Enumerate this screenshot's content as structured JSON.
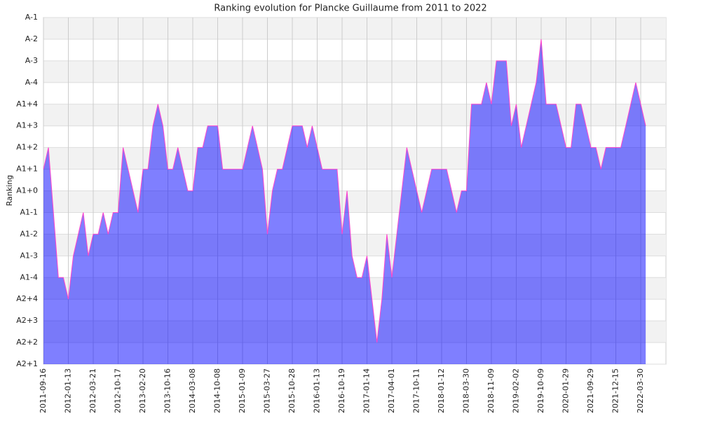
{
  "chart_data": {
    "type": "area",
    "title": "Ranking evolution for Plancke Guillaume from 2011 to 2022",
    "ylabel": "Ranking",
    "categories": [
      "2011-09-16",
      null,
      null,
      null,
      null,
      "2012-01-13",
      null,
      null,
      null,
      null,
      "2012-03-21",
      null,
      null,
      null,
      null,
      "2012-10-17",
      null,
      null,
      null,
      null,
      "2013-02-20",
      null,
      null,
      null,
      null,
      "2013-10-16",
      null,
      null,
      null,
      null,
      "2014-03-08",
      null,
      null,
      null,
      null,
      "2014-10-08",
      null,
      null,
      null,
      null,
      "2015-01-09",
      null,
      null,
      null,
      null,
      "2015-03-27",
      null,
      null,
      null,
      null,
      "2015-10-28",
      null,
      null,
      null,
      null,
      "2016-01-13",
      null,
      null,
      null,
      null,
      "2016-10-19",
      null,
      null,
      null,
      null,
      "2017-01-14",
      null,
      null,
      null,
      null,
      "2017-04-01",
      null,
      null,
      null,
      null,
      "2017-10-11",
      null,
      null,
      null,
      null,
      "2018-01-12",
      null,
      null,
      null,
      null,
      "2018-03-30",
      null,
      null,
      null,
      null,
      "2018-11-09",
      null,
      null,
      null,
      null,
      "2019-02-02",
      null,
      null,
      null,
      null,
      "2019-10-09",
      null,
      null,
      null,
      null,
      "2020-01-29",
      null,
      null,
      null,
      null,
      "2021-09-29",
      null,
      null,
      null,
      null,
      "2021-12-15",
      null,
      null,
      null,
      null,
      "2022-03-30",
      null
    ],
    "values": [
      9,
      10,
      7,
      4,
      4,
      3,
      5,
      6,
      7,
      5,
      6,
      6,
      7,
      6,
      7,
      7,
      10,
      9,
      8,
      7,
      9,
      9,
      11,
      12,
      11,
      9,
      9,
      10,
      9,
      8,
      8,
      10,
      10,
      11,
      11,
      11,
      9,
      9,
      9,
      9,
      9,
      10,
      11,
      10,
      9,
      6,
      8,
      9,
      9,
      10,
      11,
      11,
      11,
      10,
      11,
      10,
      9,
      9,
      9,
      9,
      6,
      8,
      5,
      4,
      4,
      5,
      3,
      1,
      3,
      6,
      4,
      6,
      8,
      10,
      9,
      8,
      7,
      8,
      9,
      9,
      9,
      9,
      8,
      7,
      8,
      8,
      12,
      12,
      12,
      13,
      12,
      14,
      14,
      14,
      11,
      12,
      10,
      11,
      12,
      13,
      15,
      12,
      12,
      12,
      11,
      10,
      10,
      12,
      12,
      11,
      10,
      10,
      9,
      10,
      10,
      10,
      10,
      11,
      12,
      13,
      12,
      11
    ],
    "color": "#0000ff",
    "line_color": "#ff44cc",
    "ylim": [
      0,
      16
    ],
    "yticks": [
      {
        "value": 0,
        "label": "A2+1"
      },
      {
        "value": 1,
        "label": "A2+2"
      },
      {
        "value": 2,
        "label": "A2+3"
      },
      {
        "value": 3,
        "label": "A2+4"
      },
      {
        "value": 4,
        "label": "A1-4"
      },
      {
        "value": 5,
        "label": "A1-3"
      },
      {
        "value": 6,
        "label": "A1-2"
      },
      {
        "value": 7,
        "label": "A1-1"
      },
      {
        "value": 8,
        "label": "A1+0"
      },
      {
        "value": 9,
        "label": "A1+1"
      },
      {
        "value": 10,
        "label": "A1+2"
      },
      {
        "value": 11,
        "label": "A1+3"
      },
      {
        "value": 12,
        "label": "A1+4"
      },
      {
        "value": 13,
        "label": "A-4"
      },
      {
        "value": 14,
        "label": "A-3"
      },
      {
        "value": 15,
        "label": "A-2"
      },
      {
        "value": 16,
        "label": "A-1"
      }
    ],
    "grid": true
  }
}
